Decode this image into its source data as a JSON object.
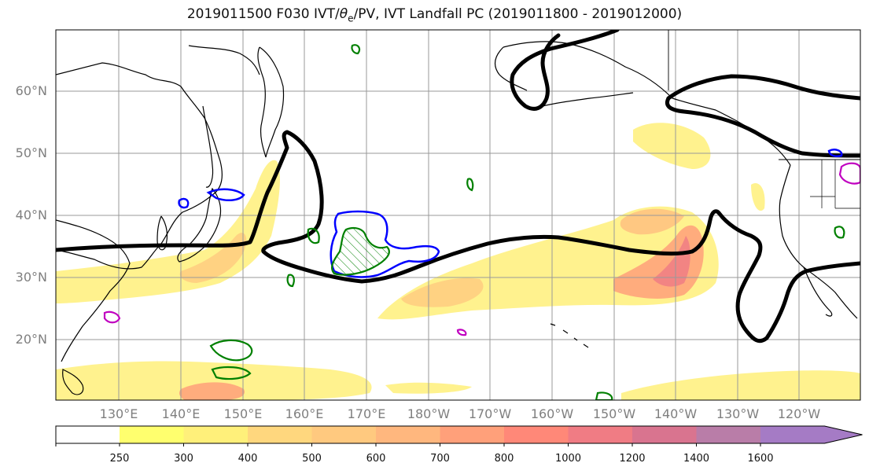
{
  "title": {
    "prefix": "2019011500 F030 IVT/",
    "theta": "θ",
    "theta_sub": "e",
    "suffix": "/PV, IVT Landfall PC (2019011800 - 2019012000)"
  },
  "lat_labels": [
    "60°N",
    "50°N",
    "40°N",
    "30°N",
    "20°N"
  ],
  "lon_labels": [
    "130°E",
    "140°E",
    "150°E",
    "160°E",
    "170°E",
    "180°W",
    "170°W",
    "160°W",
    "150°W",
    "140°W",
    "130°W",
    "120°W"
  ],
  "colorbar": {
    "levels": [
      "250",
      "300",
      "400",
      "500",
      "600",
      "700",
      "800",
      "1000",
      "1200",
      "1400",
      "1600"
    ],
    "colors": [
      "#ffff6e",
      "#fff07a",
      "#ffd77e",
      "#ffc97f",
      "#ffb77e",
      "#ffa07a",
      "#ff8878",
      "#f07c84",
      "#d9748f",
      "#b97da8",
      "#a57bc5"
    ],
    "extend": "max"
  },
  "colors": {
    "coastline": "#000000",
    "pv_contour": "#000000",
    "theta_e_green": "#008000",
    "theta_e_blue": "#0000ff",
    "theta_e_magenta": "#c000c0",
    "grid": "#999999"
  }
}
